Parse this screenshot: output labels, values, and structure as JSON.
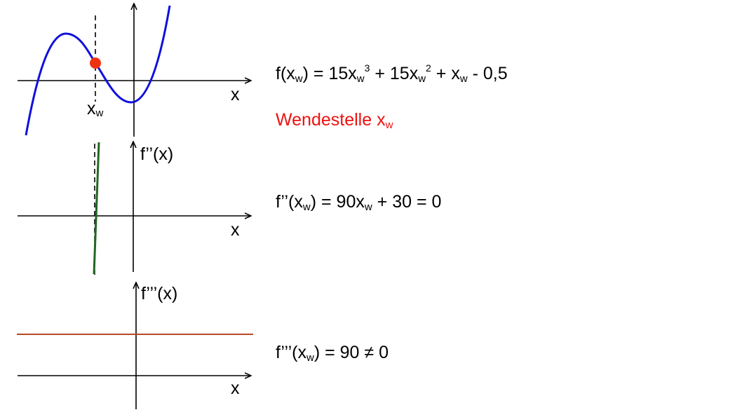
{
  "colors": {
    "f_curve": "#1010dd",
    "inflection_point": "#ee3311",
    "f2_line": "#226622",
    "f3_line": "#b84a22",
    "wendestelle_text": "#ee1111",
    "axes": "#000000"
  },
  "graph1": {
    "x_axis_label": "x",
    "marker_label": "x",
    "marker_label_sub": "w"
  },
  "graph2": {
    "x_axis_label": "x",
    "y_axis_label": "f’’(x)"
  },
  "graph3": {
    "x_axis_label": "x",
    "y_axis_label": "f’’’(x)"
  },
  "equations": {
    "f": {
      "p1": "f(x",
      "s1": "w",
      "p2": ") = 15x",
      "s2": "w",
      "e2": "3",
      "p3": " + 15x",
      "s3": "w",
      "e3": "2",
      "p4": " + x",
      "s4": "w",
      "p5": " - 0,5"
    },
    "wendestelle": {
      "text": "Wendestelle x",
      "sub": "w"
    },
    "f2": {
      "p1": "f’’(x",
      "s1": "w",
      "p2": ") = 90x",
      "s2": "w",
      "p3": " + 30 = 0"
    },
    "f3": {
      "p1": "f’’’(x",
      "s1": "w",
      "p2": ") = 90 ≠ 0"
    }
  }
}
